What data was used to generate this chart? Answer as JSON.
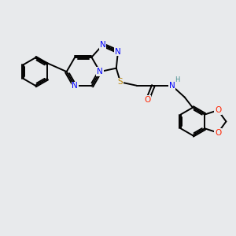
{
  "background_color": "#e8eaec",
  "bond_color": "#000000",
  "atom_colors": {
    "N": "#0000ff",
    "S": "#b8860b",
    "O": "#ff2200",
    "H": "#4a9090",
    "C": "#000000"
  },
  "figsize": [
    3.0,
    3.0
  ],
  "dpi": 100
}
